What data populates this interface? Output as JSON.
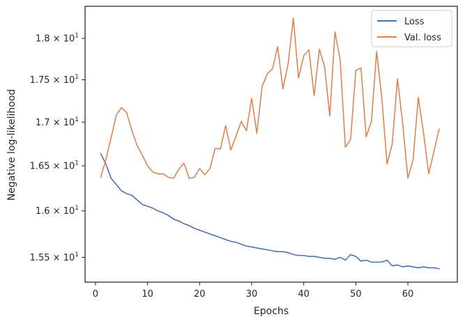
{
  "chart_data": {
    "type": "line",
    "xlabel": "Epochs",
    "ylabel": "Negative log-likelihood",
    "xlim": [
      -2,
      69.5
    ],
    "ylim": [
      15.24,
      18.4
    ],
    "yscale": "log",
    "grid": false,
    "legend_position": "top-right",
    "x_ticks": [
      0,
      10,
      20,
      30,
      40,
      50,
      60
    ],
    "x_tick_labels": [
      "0",
      "10",
      "20",
      "30",
      "40",
      "50",
      "60"
    ],
    "y_ticks": [
      15.5,
      16.0,
      16.5,
      17.0,
      17.5,
      18.0
    ],
    "y_tick_labels": [
      {
        "mantissa": "1.55",
        "base": "10",
        "exp": "1"
      },
      {
        "mantissa": "1.6",
        "base": "10",
        "exp": "1"
      },
      {
        "mantissa": "1.65",
        "base": "10",
        "exp": "1"
      },
      {
        "mantissa": "1.7",
        "base": "10",
        "exp": "1"
      },
      {
        "mantissa": "1.75",
        "base": "10",
        "exp": "1"
      },
      {
        "mantissa": "1.8",
        "base": "10",
        "exp": "1"
      }
    ],
    "x": [
      1,
      2,
      3,
      4,
      5,
      6,
      7,
      8,
      9,
      10,
      11,
      12,
      13,
      14,
      15,
      16,
      17,
      18,
      19,
      20,
      21,
      22,
      23,
      24,
      25,
      26,
      27,
      28,
      29,
      30,
      31,
      32,
      33,
      34,
      35,
      36,
      37,
      38,
      39,
      40,
      41,
      42,
      43,
      44,
      45,
      46,
      47,
      48,
      49,
      50,
      51,
      52,
      53,
      54,
      55,
      56,
      57,
      58,
      59,
      60,
      61,
      62,
      63,
      64,
      65,
      66
    ],
    "series": [
      {
        "name": "Loss",
        "color": "#4c72b0",
        "values": [
          16.64,
          16.52,
          16.36,
          16.29,
          16.22,
          16.19,
          16.17,
          16.12,
          16.07,
          16.05,
          16.03,
          16.0,
          15.98,
          15.95,
          15.91,
          15.89,
          15.86,
          15.84,
          15.81,
          15.79,
          15.77,
          15.75,
          15.73,
          15.71,
          15.69,
          15.67,
          15.66,
          15.64,
          15.62,
          15.61,
          15.6,
          15.59,
          15.58,
          15.57,
          15.56,
          15.56,
          15.55,
          15.53,
          15.52,
          15.52,
          15.51,
          15.51,
          15.5,
          15.49,
          15.49,
          15.48,
          15.5,
          15.47,
          15.53,
          15.51,
          15.46,
          15.47,
          15.45,
          15.45,
          15.45,
          15.47,
          15.41,
          15.42,
          15.4,
          15.41,
          15.4,
          15.39,
          15.4,
          15.39,
          15.39,
          15.38
        ]
      },
      {
        "name": "Val. loss",
        "color": "#dd8452",
        "values": [
          16.37,
          16.57,
          16.82,
          17.08,
          17.17,
          17.11,
          16.9,
          16.73,
          16.62,
          16.5,
          16.43,
          16.41,
          16.41,
          16.37,
          16.36,
          16.46,
          16.53,
          16.36,
          16.37,
          16.47,
          16.4,
          16.47,
          16.7,
          16.69,
          16.96,
          16.68,
          16.84,
          17.01,
          16.9,
          17.28,
          16.87,
          17.42,
          17.57,
          17.63,
          17.9,
          17.39,
          17.69,
          18.25,
          17.52,
          17.79,
          17.86,
          17.31,
          17.87,
          17.66,
          17.07,
          18.08,
          17.74,
          16.71,
          16.8,
          17.61,
          17.64,
          16.83,
          17.01,
          17.84,
          17.28,
          16.52,
          16.75,
          17.51,
          16.99,
          16.36,
          16.57,
          17.29,
          16.88,
          16.41,
          16.66,
          16.92
        ]
      }
    ]
  }
}
